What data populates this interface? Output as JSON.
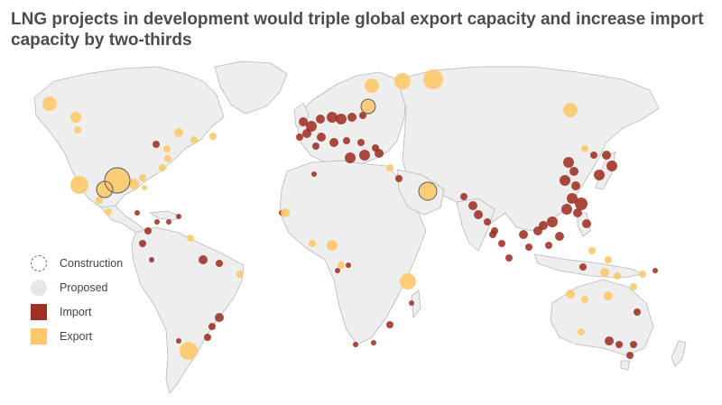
{
  "title": "LNG projects in development would triple global export capacity and increase import capacity by two-thirds",
  "legend": {
    "items": [
      {
        "label": "Construction",
        "style": "dashed-outline-circle",
        "color": "#6a6a6a"
      },
      {
        "label": "Proposed",
        "style": "light-circle",
        "color": "#e5e8e8"
      },
      {
        "label": "Import",
        "style": "filled-square",
        "color": "#a22f22"
      },
      {
        "label": "Export",
        "style": "filled-square",
        "color": "#fdc96a"
      }
    ]
  },
  "colors": {
    "land": "#eeeeee",
    "border": "#b8b8b8",
    "import": "#9b2a1c",
    "export": "#fdc96a"
  }
}
